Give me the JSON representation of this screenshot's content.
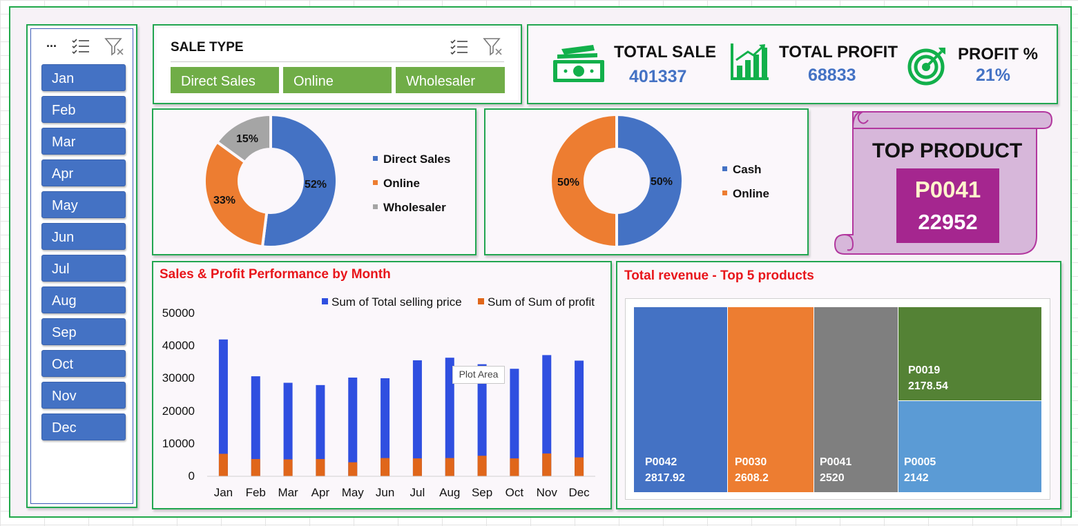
{
  "month_slicer": {
    "header": "...",
    "months": [
      "Jan",
      "Feb",
      "Mar",
      "Apr",
      "May",
      "Jun",
      "Jul",
      "Aug",
      "Sep",
      "Oct",
      "Nov",
      "Dec"
    ]
  },
  "sale_type_slicer": {
    "title": "SALE TYPE",
    "options": [
      "Direct Sales",
      "Online",
      "Wholesaler"
    ],
    "color": "#70ad47"
  },
  "kpis": {
    "total_sale": {
      "label": "TOTAL SALE",
      "value": "401337"
    },
    "total_profit": {
      "label": "TOTAL PROFIT",
      "value": "68833"
    },
    "profit_pct": {
      "label": "PROFIT %",
      "value": "21%"
    }
  },
  "top_product": {
    "title": "TOP PRODUCT",
    "code": "P0041",
    "value": "22952"
  },
  "tooltip": "Plot Area",
  "chart_data": [
    {
      "type": "pie",
      "variant": "doughnut",
      "labels": [
        "Direct Sales",
        "Online",
        "Wholesaler"
      ],
      "values": [
        52,
        33,
        15
      ],
      "value_labels": [
        "52%",
        "33%",
        "15%"
      ],
      "colors": [
        "#4472c4",
        "#ed7d31",
        "#a5a5a5"
      ],
      "legend_position": "right"
    },
    {
      "type": "pie",
      "variant": "doughnut",
      "labels": [
        "Cash",
        "Online"
      ],
      "values": [
        50,
        50
      ],
      "value_labels": [
        "50%",
        "50%"
      ],
      "colors": [
        "#4472c4",
        "#ed7d31"
      ],
      "legend_position": "right"
    },
    {
      "type": "bar",
      "title": "Sales & Profit Performance by Month",
      "categories": [
        "Jan",
        "Feb",
        "Mar",
        "Apr",
        "May",
        "Jun",
        "Jul",
        "Aug",
        "Sep",
        "Oct",
        "Nov",
        "Dec"
      ],
      "series": [
        {
          "name": "Sum of Total selling price",
          "color": "#2f4fe0",
          "values": [
            42000,
            30700,
            28700,
            28000,
            30300,
            30100,
            35600,
            36400,
            34400,
            33000,
            37200,
            35500
          ]
        },
        {
          "name": "Sum of Sum of profit",
          "color": "#e0661a",
          "values": [
            6900,
            5300,
            5200,
            5300,
            4300,
            5600,
            5500,
            5600,
            6300,
            5500,
            7000,
            5800
          ]
        }
      ],
      "yticks": [
        0,
        10000,
        20000,
        30000,
        40000,
        50000
      ],
      "ylim": [
        0,
        50000
      ],
      "legend_position": "top-right",
      "grid": false
    },
    {
      "type": "treemap",
      "title": "Total revenue - Top 5 products",
      "items": [
        {
          "name": "P0042",
          "value": "2817.92",
          "color": "#4472c4"
        },
        {
          "name": "P0030",
          "value": "2608.2",
          "color": "#ed7d31"
        },
        {
          "name": "P0041",
          "value": "2520",
          "color": "#7f7f7f"
        },
        {
          "name": "P0019",
          "value": "2178.54",
          "color": "#548235"
        },
        {
          "name": "P0005",
          "value": "2142",
          "color": "#5b9bd5"
        }
      ]
    }
  ]
}
